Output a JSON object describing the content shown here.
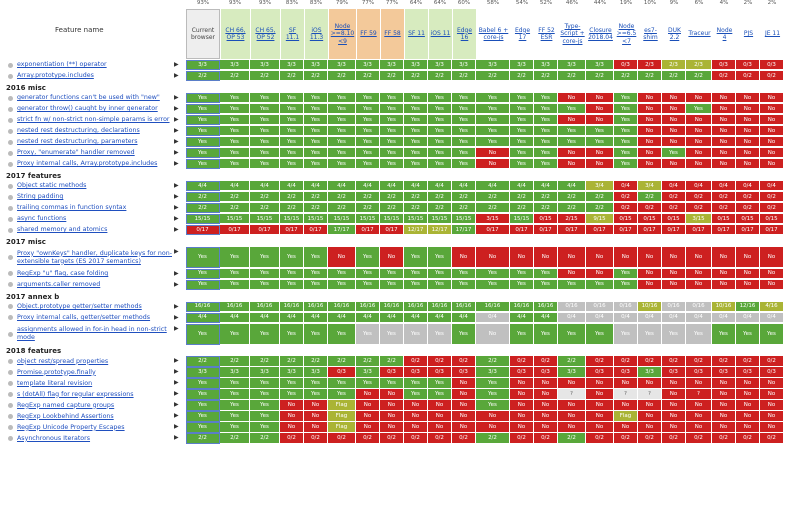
{
  "header": {
    "feature_name": "Feature name",
    "columns": [
      {
        "label": "Current browser",
        "pct": "93%",
        "cur": true
      },
      {
        "label": "CH 66, OP 53",
        "pct": "93%"
      },
      {
        "label": "CH 65, OP 52",
        "pct": "93%"
      },
      {
        "label": "SF 11.1",
        "pct": "83%"
      },
      {
        "label": "iOS 11.3",
        "pct": "83%"
      },
      {
        "label": "Node >=8.10 <9",
        "pct": "79%"
      },
      {
        "label": "FF 59",
        "pct": "77%"
      },
      {
        "label": "FF 58",
        "pct": "77%"
      },
      {
        "label": "SF 11",
        "pct": "64%"
      },
      {
        "label": "iOS 11",
        "pct": "64%"
      },
      {
        "label": "Edge 16",
        "pct": "60%"
      },
      {
        "label": "Babel 6 + core-js",
        "pct": "58%"
      },
      {
        "label": "Edge 17",
        "pct": "54%"
      },
      {
        "label": "FF 52 ESR",
        "pct": "52%"
      },
      {
        "label": "Type-Script + core-js",
        "pct": "46%"
      },
      {
        "label": "Closure 2018.04",
        "pct": "44%"
      },
      {
        "label": "Node >=6.5 <7",
        "pct": "19%"
      },
      {
        "label": "es7-shim",
        "pct": "10%"
      },
      {
        "label": "DUK 2.2",
        "pct": "9%"
      },
      {
        "label": "Traceur",
        "pct": "6%"
      },
      {
        "label": "Node 4",
        "pct": "4%"
      },
      {
        "label": "PJS",
        "pct": "2%"
      },
      {
        "label": "JE 11",
        "pct": "2%"
      }
    ]
  },
  "rows": [
    {
      "type": "feat",
      "label": "exponentiation (**) operator",
      "cells": [
        "3/3",
        "3/3",
        "3/3",
        "3/3",
        "3/3",
        "3/3",
        "3/3",
        "3/3",
        "3/3",
        "3/3",
        "3/3",
        "3/3",
        "3/3",
        "3/3",
        "3/3",
        "3/3",
        "0/3",
        "2/3",
        "2/3",
        "2/3",
        "0/3",
        "0/3",
        "0/3"
      ],
      "kinds": "yyyyyyyyyyyyyyyyntppnnn"
    },
    {
      "type": "feat",
      "label": "Array.prototype.includes",
      "cells": [
        "2/2",
        "2/2",
        "2/2",
        "2/2",
        "2/2",
        "2/2",
        "2/2",
        "2/2",
        "2/2",
        "2/2",
        "2/2",
        "2/2",
        "2/2",
        "2/2",
        "2/2",
        "2/2",
        "2/2",
        "2/2",
        "2/2",
        "2/2",
        "0/2",
        "0/2",
        "0/2"
      ],
      "kinds": "yyyyyyyyyyyyyyyyyyyynnn"
    },
    {
      "type": "sec",
      "label": "2016 misc"
    },
    {
      "type": "feat",
      "label": "generator functions can't be used with \"new\"",
      "cells": [
        "Yes",
        "Yes",
        "Yes",
        "Yes",
        "Yes",
        "Yes",
        "Yes",
        "Yes",
        "Yes",
        "Yes",
        "Yes",
        "Yes",
        "Yes",
        "Yes",
        "No",
        "No",
        "Yes",
        "No",
        "No",
        "No",
        "No",
        "No",
        "No"
      ],
      "kinds": "yyyyyyyyyyyyyynnynnnnnn"
    },
    {
      "type": "feat",
      "label": "generator throw() caught by inner generator",
      "cells": [
        "Yes",
        "Yes",
        "Yes",
        "Yes",
        "Yes",
        "Yes",
        "Yes",
        "Yes",
        "Yes",
        "Yes",
        "Yes",
        "Yes",
        "Yes",
        "Yes",
        "Yes",
        "No",
        "Yes",
        "No",
        "No",
        "Yes",
        "No",
        "No",
        "No"
      ],
      "kinds": "yyyyyyyyyyyyyyynynnynnn"
    },
    {
      "type": "feat",
      "label": "strict fn w/ non-strict non-simple params is error",
      "cells": [
        "Yes",
        "Yes",
        "Yes",
        "Yes",
        "Yes",
        "Yes",
        "Yes",
        "Yes",
        "Yes",
        "Yes",
        "Yes",
        "Yes",
        "Yes",
        "Yes",
        "No",
        "No",
        "Yes",
        "No",
        "No",
        "No",
        "No",
        "No",
        "No"
      ],
      "kinds": "yyyyyyyyyyyyyynnynnnnnn"
    },
    {
      "type": "feat",
      "label": "nested rest destructuring, declarations",
      "cells": [
        "Yes",
        "Yes",
        "Yes",
        "Yes",
        "Yes",
        "Yes",
        "Yes",
        "Yes",
        "Yes",
        "Yes",
        "Yes",
        "Yes",
        "Yes",
        "Yes",
        "Yes",
        "Yes",
        "Yes",
        "No",
        "No",
        "No",
        "No",
        "No",
        "No"
      ],
      "kinds": "yyyyyyyyyyyyyyyyynnnnnn"
    },
    {
      "type": "feat",
      "label": "nested rest destructuring, parameters",
      "cells": [
        "Yes",
        "Yes",
        "Yes",
        "Yes",
        "Yes",
        "Yes",
        "Yes",
        "Yes",
        "Yes",
        "Yes",
        "Yes",
        "Yes",
        "Yes",
        "Yes",
        "Yes",
        "Yes",
        "Yes",
        "No",
        "No",
        "No",
        "No",
        "No",
        "No"
      ],
      "kinds": "yyyyyyyyyyyyyyyyynnnnnn"
    },
    {
      "type": "feat",
      "label": "Proxy, \"enumerate\" handler removed",
      "cells": [
        "Yes",
        "Yes",
        "Yes",
        "Yes",
        "Yes",
        "Yes",
        "Yes",
        "Yes",
        "Yes",
        "Yes",
        "Yes",
        "No",
        "Yes",
        "Yes",
        "No",
        "No",
        "Yes",
        "No",
        "Yes",
        "No",
        "No",
        "No",
        "No"
      ],
      "kinds": "yyyyyyyyyyynyynnynynnnn"
    },
    {
      "type": "feat",
      "label": "Proxy internal calls, Array.prototype.includes",
      "cells": [
        "Yes",
        "Yes",
        "Yes",
        "Yes",
        "Yes",
        "Yes",
        "Yes",
        "Yes",
        "Yes",
        "Yes",
        "Yes",
        "No",
        "Yes",
        "Yes",
        "No",
        "No",
        "Yes",
        "No",
        "No",
        "No",
        "No",
        "No",
        "No"
      ],
      "kinds": "yyyyyyyyyyynyynnynnnnnn"
    },
    {
      "type": "sec",
      "label": "2017 features"
    },
    {
      "type": "feat",
      "label": "Object static methods",
      "cells": [
        "4/4",
        "4/4",
        "4/4",
        "4/4",
        "4/4",
        "4/4",
        "4/4",
        "4/4",
        "4/4",
        "4/4",
        "4/4",
        "4/4",
        "4/4",
        "4/4",
        "4/4",
        "3/4",
        "0/4",
        "3/4",
        "0/4",
        "0/4",
        "0/4",
        "0/4",
        "0/4"
      ],
      "kinds": "yyyyyyyyyyyyyyypnpnnnnn"
    },
    {
      "type": "feat",
      "label": "String padding",
      "cells": [
        "2/2",
        "2/2",
        "2/2",
        "2/2",
        "2/2",
        "2/2",
        "2/2",
        "2/2",
        "2/2",
        "2/2",
        "2/2",
        "2/2",
        "2/2",
        "2/2",
        "2/2",
        "2/2",
        "0/2",
        "2/2",
        "0/2",
        "0/2",
        "0/2",
        "0/2",
        "0/2"
      ],
      "kinds": "yyyyyyyyyyyyyyyynynnnnn"
    },
    {
      "type": "feat",
      "label": "trailing commas in function syntax",
      "cells": [
        "2/2",
        "2/2",
        "2/2",
        "2/2",
        "2/2",
        "2/2",
        "2/2",
        "2/2",
        "2/2",
        "2/2",
        "2/2",
        "2/2",
        "2/2",
        "2/2",
        "2/2",
        "2/2",
        "0/2",
        "0/2",
        "0/2",
        "0/2",
        "0/2",
        "0/2",
        "0/2"
      ],
      "kinds": "yyyyyyyyyyyyyyyynnnnnnn"
    },
    {
      "type": "feat",
      "label": "async functions",
      "cells": [
        "15/15",
        "15/15",
        "15/15",
        "15/15",
        "15/15",
        "15/15",
        "15/15",
        "15/15",
        "15/15",
        "15/15",
        "15/15",
        "3/15",
        "15/15",
        "0/15",
        "2/15",
        "9/15",
        "0/15",
        "0/15",
        "0/15",
        "3/15",
        "0/15",
        "0/15",
        "0/15"
      ],
      "kinds": "yyyyyyyyyyynynnpnnnpnnn"
    },
    {
      "type": "feat",
      "label": "shared memory and atomics",
      "cells": [
        "0/17",
        "0/17",
        "0/17",
        "0/17",
        "0/17",
        "17/17",
        "0/17",
        "0/17",
        "12/17",
        "12/17",
        "17/17",
        "0/17",
        "0/17",
        "0/17",
        "0/17",
        "0/17",
        "0/17",
        "0/17",
        "0/17",
        "0/17",
        "0/17",
        "0/17",
        "0/17"
      ],
      "kinds": "nnnnnynnppynnnnnnnnnnnn"
    },
    {
      "type": "sec",
      "label": "2017 misc"
    },
    {
      "type": "feat",
      "label": "Proxy \"ownKeys\" handler, duplicate keys for non-extensible targets (ES 2017 semantics)",
      "cells": [
        "Yes",
        "Yes",
        "Yes",
        "Yes",
        "Yes",
        "No",
        "Yes",
        "No",
        "Yes",
        "Yes",
        "No",
        "No",
        "No",
        "No",
        "No",
        "No",
        "No",
        "No",
        "No",
        "No",
        "No",
        "No",
        "No"
      ],
      "kinds": "yyyyynynyynnnnnnnnnnnnn",
      "tall": true
    },
    {
      "type": "feat",
      "label": "RegExp \"u\" flag, case folding",
      "cells": [
        "Yes",
        "Yes",
        "Yes",
        "Yes",
        "Yes",
        "Yes",
        "Yes",
        "Yes",
        "Yes",
        "Yes",
        "Yes",
        "Yes",
        "Yes",
        "Yes",
        "No",
        "No",
        "Yes",
        "No",
        "No",
        "No",
        "No",
        "No",
        "No"
      ],
      "kinds": "yyyyyyyyyyyyyynnynnnnnn"
    },
    {
      "type": "feat",
      "label": "arguments.caller removed",
      "cells": [
        "Yes",
        "Yes",
        "Yes",
        "Yes",
        "Yes",
        "Yes",
        "Yes",
        "Yes",
        "Yes",
        "Yes",
        "Yes",
        "Yes",
        "Yes",
        "Yes",
        "Yes",
        "Yes",
        "Yes",
        "No",
        "No",
        "No",
        "No",
        "No",
        "No"
      ],
      "kinds": "yyyyyyyyyyyyyyyyynnnnnn"
    },
    {
      "type": "sec",
      "label": "2017 annex b"
    },
    {
      "type": "feat",
      "label": "Object.prototype getter/setter methods",
      "cells": [
        "16/16",
        "16/16",
        "16/16",
        "16/16",
        "16/16",
        "16/16",
        "16/16",
        "16/16",
        "16/16",
        "16/16",
        "16/16",
        "16/16",
        "16/16",
        "16/16",
        "0/16",
        "0/16",
        "0/16",
        "10/16",
        "0/16",
        "0/16",
        "10/16",
        "12/16",
        "4/16"
      ],
      "kinds": "yyyyyyyyyyyyyygggpggpyp"
    },
    {
      "type": "feat",
      "label": "Proxy internal calls, getter/setter methods",
      "cells": [
        "4/4",
        "4/4",
        "4/4",
        "4/4",
        "4/4",
        "4/4",
        "4/4",
        "4/4",
        "4/4",
        "4/4",
        "4/4",
        "0/4",
        "4/4",
        "4/4",
        "0/4",
        "0/4",
        "0/4",
        "0/4",
        "0/4",
        "0/4",
        "0/4",
        "0/4",
        "0/4"
      ],
      "kinds": "yyyyyyyyyyygyyggggggggg"
    },
    {
      "type": "feat",
      "label": "assignments allowed in for-in head in non-strict mode",
      "cells": [
        "Yes",
        "Yes",
        "Yes",
        "Yes",
        "Yes",
        "Yes",
        "Yes",
        "Yes",
        "Yes",
        "Yes",
        "Yes",
        "No",
        "Yes",
        "Yes",
        "Yes",
        "Yes",
        "Yes",
        "Yes",
        "Yes",
        "Yes",
        "Yes",
        "Yes",
        "Yes"
      ],
      "kinds": "yyyyyyggggygyyyyggggyyy",
      "tall": true
    },
    {
      "type": "sec",
      "label": "2018 features"
    },
    {
      "type": "feat",
      "label": "object rest/spread properties",
      "cells": [
        "2/2",
        "2/2",
        "2/2",
        "2/2",
        "2/2",
        "2/2",
        "2/2",
        "2/2",
        "0/2",
        "0/2",
        "0/2",
        "2/2",
        "0/2",
        "0/2",
        "2/2",
        "0/2",
        "0/2",
        "0/2",
        "0/2",
        "0/2",
        "0/2",
        "0/2",
        "0/2"
      ],
      "kinds": "yyyyyyyynnnynnynnnnnnnn"
    },
    {
      "type": "feat",
      "label": "Promise.prototype.finally",
      "cells": [
        "3/3",
        "3/3",
        "3/3",
        "3/3",
        "3/3",
        "0/3",
        "3/3",
        "0/3",
        "0/3",
        "0/3",
        "0/3",
        "3/3",
        "0/3",
        "0/3",
        "3/3",
        "0/3",
        "0/3",
        "3/3",
        "0/3",
        "0/3",
        "0/3",
        "0/3",
        "0/3"
      ],
      "kinds": "yyyyynynnnnynnynnynnnnn"
    },
    {
      "type": "feat",
      "label": "template literal revision",
      "cells": [
        "Yes",
        "Yes",
        "Yes",
        "Yes",
        "Yes",
        "Yes",
        "Yes",
        "Yes",
        "Yes",
        "Yes",
        "No",
        "Yes",
        "No",
        "No",
        "No",
        "No",
        "No",
        "No",
        "No",
        "No",
        "No",
        "No",
        "No"
      ],
      "kinds": "yyyyyyyyyynynnnnnnnnnnn"
    },
    {
      "type": "feat",
      "label": "s (dotAll) flag for regular expressions",
      "cells": [
        "Yes",
        "Yes",
        "Yes",
        "Yes",
        "Yes",
        "Yes",
        "No",
        "No",
        "Yes",
        "Yes",
        "No",
        "Yes",
        "No",
        "No",
        "?",
        "No",
        "?",
        "?",
        "No",
        "?",
        "No",
        "No",
        "No"
      ],
      "kinds": "yyyyyynnyynynnunuunnnnn"
    },
    {
      "type": "feat",
      "label": "RegExp named capture groups",
      "cells": [
        "Yes",
        "Yes",
        "Yes",
        "No",
        "No",
        "Flag",
        "No",
        "No",
        "No",
        "No",
        "No",
        "Yes",
        "No",
        "No",
        "No",
        "No",
        "No",
        "No",
        "No",
        "No",
        "No",
        "No",
        "No"
      ],
      "kinds": "yyynnpnnnnnynnnnnnnnnnn"
    },
    {
      "type": "feat",
      "label": "RegExp Lookbehind Assertions",
      "cells": [
        "Yes",
        "Yes",
        "Yes",
        "No",
        "No",
        "Flag",
        "No",
        "No",
        "No",
        "No",
        "No",
        "No",
        "No",
        "No",
        "No",
        "No",
        "Flag",
        "No",
        "No",
        "No",
        "No",
        "No",
        "No"
      ],
      "kinds": "yyynnpnnnnnnnnnnpnnnnnn"
    },
    {
      "type": "feat",
      "label": "RegExp Unicode Property Escapes",
      "cells": [
        "Yes",
        "Yes",
        "Yes",
        "No",
        "No",
        "Flag",
        "No",
        "No",
        "No",
        "No",
        "No",
        "No",
        "No",
        "No",
        "No",
        "No",
        "No",
        "No",
        "No",
        "No",
        "No",
        "No",
        "No"
      ],
      "kinds": "yyynnpnnnnnnnnnnnnnnnnn"
    },
    {
      "type": "feat",
      "label": "Asynchronous Iterators",
      "cells": [
        "2/2",
        "2/2",
        "2/2",
        "0/2",
        "0/2",
        "0/2",
        "0/2",
        "0/2",
        "0/2",
        "0/2",
        "0/2",
        "2/2",
        "0/2",
        "0/2",
        "2/2",
        "0/2",
        "0/2",
        "0/2",
        "0/2",
        "0/2",
        "0/2",
        "0/2",
        "0/2"
      ],
      "kinds": "yyynnnnnnnnynnynnnnnnnn"
    }
  ],
  "colors": {
    "yes": "#59a73a",
    "no": "#cd2020",
    "partial": "#aab435",
    "gray": "#c0c0c0"
  }
}
